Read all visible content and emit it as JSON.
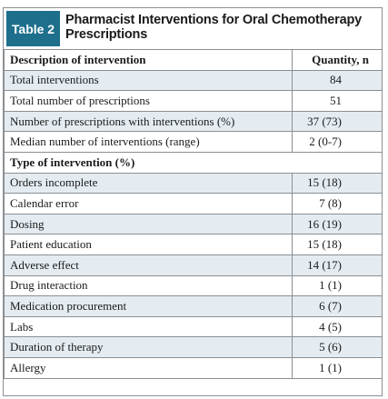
{
  "table": {
    "tag": "Table 2",
    "title": "Pharmacist Interventions for Oral Chemotherapy Prescriptions",
    "columns": [
      "Description of intervention",
      "Quantity, n"
    ],
    "rows": [
      {
        "label": "Total interventions",
        "value": "84"
      },
      {
        "label": "Total number of prescriptions",
        "value": "51"
      },
      {
        "label": "Number of prescriptions with interventions (%)",
        "value": "37 (73)"
      },
      {
        "label": "Median number of interventions (range)",
        "value": "2 (0-7)"
      }
    ],
    "section": "Type of intervention (%)",
    "types": [
      {
        "label": "Orders incomplete",
        "value": "15 (18)"
      },
      {
        "label": "Calendar error",
        "value": "7 (8)"
      },
      {
        "label": "Dosing",
        "value": "16 (19)"
      },
      {
        "label": "Patient education",
        "value": "15 (18)"
      },
      {
        "label": "Adverse effect",
        "value": "14 (17)"
      },
      {
        "label": "Drug interaction",
        "value": "1 (1)"
      },
      {
        "label": "Medication procurement",
        "value": "6 (7)"
      },
      {
        "label": "Labs",
        "value": "4 (5)"
      },
      {
        "label": "Duration of therapy",
        "value": "5 (6)"
      },
      {
        "label": "Allergy",
        "value": "1 (1)"
      }
    ],
    "colors": {
      "tag_bg": "#1d6f8c",
      "row_shade": "#e4ecf2",
      "border": "#8b8f93"
    }
  }
}
